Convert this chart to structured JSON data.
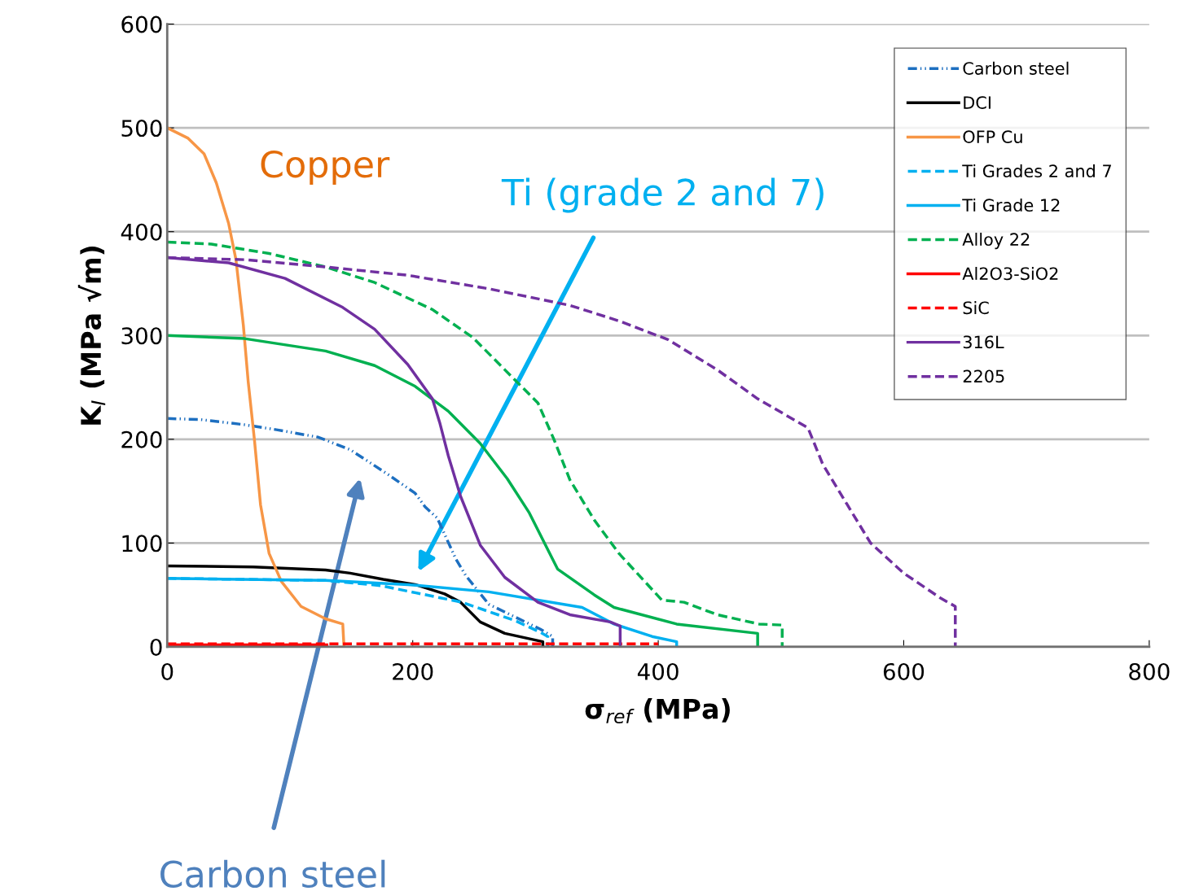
{
  "chart_data": {
    "type": "line",
    "xlabel": "σ$_{ref}$ (MPa)",
    "ylabel": "K$_{I}$ (MPa √m)",
    "xlim": [
      0,
      800
    ],
    "xticks": [
      0,
      200,
      400,
      600,
      800
    ],
    "ylim": [
      0,
      600
    ],
    "yticks": [
      0,
      100,
      200,
      300,
      400,
      500,
      600
    ],
    "grid": "y",
    "legend": "top right",
    "marker": "none",
    "series": [
      {
        "name": "Carbon steel",
        "color": "#1d6fc0",
        "line_style": "dashdotdot",
        "x": [
          0,
          27,
          63,
          90,
          123,
          149,
          180,
          202,
          210,
          220,
          235,
          243,
          262,
          304,
          314,
          314
        ],
        "values": [
          220,
          219,
          214,
          209,
          202,
          190,
          166,
          148,
          135,
          124,
          85,
          69,
          41,
          17,
          10,
          0
        ]
      },
      {
        "name": "DCI",
        "color": "#000000",
        "line_style": "solid",
        "x": [
          0,
          70,
          129,
          149,
          176,
          202,
          226,
          239,
          255,
          275,
          306,
          306
        ],
        "values": [
          78,
          77,
          74,
          71,
          65,
          60,
          51,
          43,
          24,
          13,
          5,
          0
        ]
      },
      {
        "name": "OFP Cu",
        "color": "#f79646",
        "line_style": "solid",
        "x": [
          0,
          17,
          30,
          40,
          50,
          56,
          62,
          66,
          71,
          76,
          83,
          93,
          109,
          129,
          143,
          144
        ],
        "values": [
          500,
          490,
          475,
          447,
          408,
          373,
          310,
          255,
          200,
          137,
          90,
          63,
          39,
          27,
          22,
          0
        ]
      },
      {
        "name": "Ti Grades 2 and 7",
        "color": "#00b0f0",
        "line_style": "dashed",
        "x": [
          0,
          129,
          174,
          240,
          284,
          304,
          310,
          310
        ],
        "values": [
          66,
          64,
          59,
          43,
          25,
          14,
          10,
          0
        ]
      },
      {
        "name": "Ti Grade 12",
        "color": "#00b0f0",
        "line_style": "solid",
        "x": [
          0,
          129,
          196,
          262,
          338,
          364,
          395,
          415,
          415
        ],
        "values": [
          66,
          64,
          60,
          53,
          38,
          22,
          10,
          5,
          0
        ]
      },
      {
        "color": "#00b050",
        "line_style": "solid",
        "x": [
          0,
          63,
          129,
          169,
          202,
          229,
          255,
          277,
          295,
          318,
          348,
          364,
          415,
          481,
          481
        ],
        "values": [
          300,
          297,
          285,
          271,
          251,
          227,
          196,
          162,
          129,
          75,
          50,
          38,
          22,
          13,
          0
        ]
      },
      {
        "name": "Alloy 22",
        "color": "#00b050",
        "line_style": "dashed",
        "x": [
          0,
          36,
          83,
          129,
          169,
          216,
          249,
          275,
          302,
          315,
          328,
          348,
          368,
          403,
          421,
          448,
          482,
          501,
          501
        ],
        "values": [
          390,
          388,
          379,
          366,
          351,
          325,
          298,
          267,
          235,
          200,
          161,
          122,
          90,
          45,
          43,
          31,
          22,
          21,
          0
        ]
      },
      {
        "name": "Al2O3-SiO2",
        "color": "#ff0000",
        "line_style": "solid",
        "x": [
          0,
          130
        ],
        "values": [
          2,
          2
        ]
      },
      {
        "name": "SiC",
        "color": "#ff0000",
        "line_style": "dashed",
        "x": [
          0,
          400
        ],
        "values": [
          3,
          3
        ]
      },
      {
        "name": "316L",
        "color": "#7030a0",
        "line_style": "solid",
        "x": [
          0,
          50,
          96,
          143,
          169,
          196,
          216,
          222,
          229,
          239,
          255,
          275,
          302,
          328,
          361,
          369,
          369
        ],
        "values": [
          375,
          370,
          355,
          327,
          306,
          272,
          239,
          216,
          184,
          145,
          98,
          67,
          43,
          31,
          24,
          20,
          0
        ]
      },
      {
        "name": "2205",
        "color": "#7030a0",
        "line_style": "dashed",
        "x": [
          0,
          63,
          129,
          196,
          262,
          328,
          368,
          408,
          448,
          481,
          522,
          534,
          554,
          573,
          600,
          630,
          642,
          642
        ],
        "values": [
          375,
          373,
          366,
          358,
          345,
          329,
          314,
          296,
          267,
          239,
          211,
          176,
          137,
          100,
          71,
          47,
          39,
          0
        ]
      }
    ],
    "annotations": [
      "Copper",
      "Ti (grade 2 and 7)",
      "Carbon steel"
    ]
  }
}
